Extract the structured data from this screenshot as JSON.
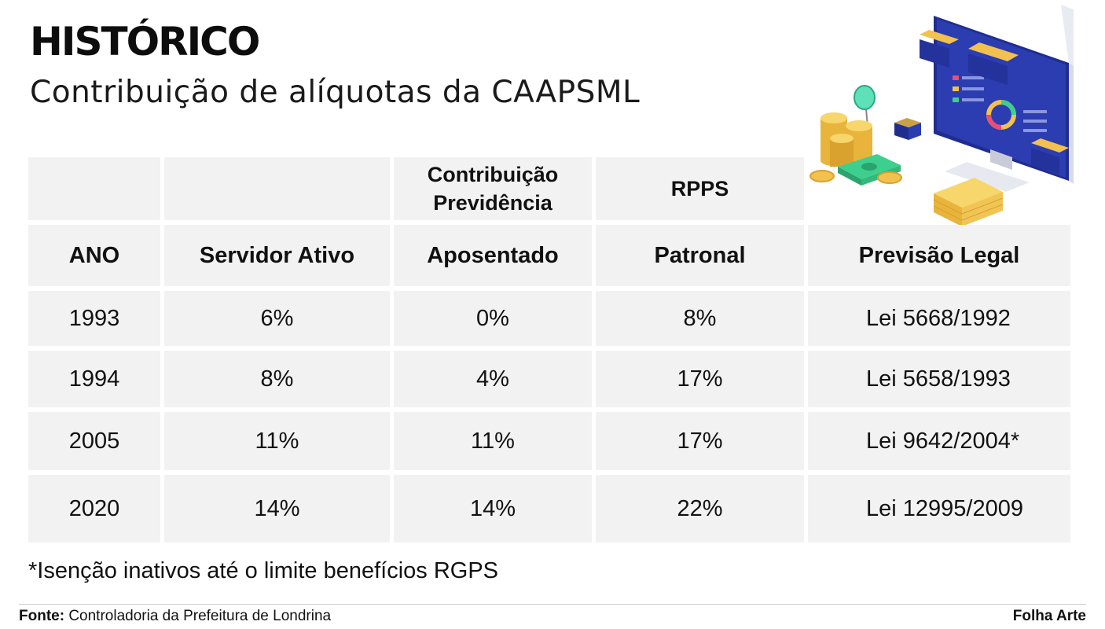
{
  "header": {
    "title": "HISTÓRICO",
    "subtitle": "Contribuição de alíquotas da CAAPSML"
  },
  "table": {
    "group_headers": {
      "contribution": [
        "Contribuição",
        "Previdência"
      ],
      "rpps": "RPPS"
    },
    "columns": [
      "ANO",
      "Servidor Ativo",
      "Aposentado",
      "Patronal",
      "Previsão Legal"
    ],
    "rows": [
      [
        "1993",
        "6%",
        "0%",
        "8%",
        "Lei 5668/1992"
      ],
      [
        "1994",
        "8%",
        "4%",
        "17%",
        "Lei 5658/1993"
      ],
      [
        "2005",
        "11%",
        "11%",
        "17%",
        "Lei 9642/2004*"
      ],
      [
        "2020",
        "14%",
        "14%",
        "22%",
        "Lei 12995/2009"
      ]
    ]
  },
  "chart_data": {
    "type": "table",
    "title": "HISTÓRICO",
    "subtitle": "Contribuição de alíquotas da CAAPSML",
    "columns": [
      "ANO",
      "Servidor Ativo",
      "Aposentado",
      "Patronal",
      "Previsão Legal"
    ],
    "rows": [
      [
        "1993",
        "6%",
        "0%",
        "8%",
        "Lei 5668/1992"
      ],
      [
        "1994",
        "8%",
        "4%",
        "17%",
        "Lei 5658/1993"
      ],
      [
        "2005",
        "11%",
        "11%",
        "17%",
        "Lei 9642/2004*"
      ],
      [
        "2020",
        "14%",
        "14%",
        "22%",
        "Lei 12995/2009"
      ]
    ]
  },
  "footnote": "*Isenção inativos até o limite benefícios RGPS",
  "footer": {
    "source_label": "Fonte:",
    "source_text": "Controladoria da Prefeitura de Londrina",
    "credit": "Folha Arte"
  },
  "colors": {
    "cell_background": "#f2f2f2",
    "monitor_blue": "#2a3aa8",
    "coin_gold": "#f2c14e",
    "cash_green": "#3ecf8e"
  },
  "icons": [
    "finance-illustration"
  ]
}
